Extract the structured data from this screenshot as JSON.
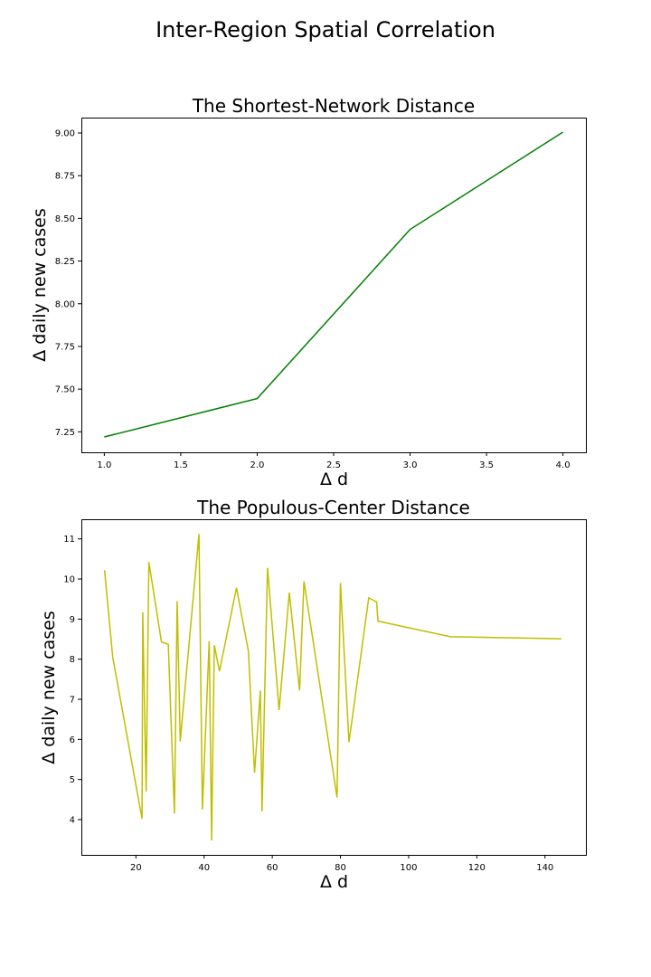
{
  "figure": {
    "suptitle": "Inter-Region Spatial Correlation"
  },
  "chart_data": [
    {
      "type": "line",
      "title": "The Shortest-Network Distance",
      "xlabel": "Δ d",
      "ylabel": "Δ daily new cases",
      "xlim": [
        0.85,
        4.15
      ],
      "ylim": [
        7.13,
        9.09
      ],
      "xticks": [
        1.0,
        1.5,
        2.0,
        2.5,
        3.0,
        3.5,
        4.0
      ],
      "xtick_labels": [
        "1.0",
        "1.5",
        "2.0",
        "2.5",
        "3.0",
        "3.5",
        "4.0"
      ],
      "yticks": [
        7.25,
        7.5,
        7.75,
        8.0,
        8.25,
        8.5,
        8.75,
        9.0
      ],
      "ytick_labels": [
        "7.25",
        "7.50",
        "7.75",
        "8.00",
        "8.25",
        "8.50",
        "8.75",
        "9.00"
      ],
      "grid": false,
      "series": [
        {
          "color": "#008000",
          "x": [
            1,
            2,
            3,
            4
          ],
          "y": [
            7.22,
            7.445,
            8.435,
            9.005
          ]
        }
      ]
    },
    {
      "type": "line",
      "title": "The Populous-Center Distance",
      "xlabel": "Δ d",
      "ylabel": "Δ daily new cases",
      "xlim": [
        4.0,
        152.0
      ],
      "ylim": [
        3.12,
        11.49
      ],
      "xticks": [
        20,
        40,
        60,
        80,
        100,
        120,
        140
      ],
      "xtick_labels": [
        "20",
        "40",
        "60",
        "80",
        "100",
        "120",
        "140"
      ],
      "yticks": [
        4,
        5,
        6,
        7,
        8,
        9,
        10,
        11
      ],
      "ytick_labels": [
        "4",
        "5",
        "6",
        "7",
        "8",
        "9",
        "10",
        "11"
      ],
      "grid": false,
      "series": [
        {
          "color": "#bfbf00",
          "x": [
            10.8,
            13.2,
            21.8,
            22.0,
            23.0,
            23.8,
            27.5,
            29.5,
            31.3,
            32.1,
            33.0,
            38.5,
            39.5,
            41.5,
            42.2,
            43.0,
            44.5,
            49.5,
            53.0,
            54.8,
            56.5,
            57.0,
            58.6,
            62.0,
            65.0,
            68.0,
            69.3,
            79.0,
            80.0,
            82.5,
            88.3,
            90.6,
            91.0,
            112.3,
            144.8
          ],
          "y": [
            10.22,
            8.05,
            4.02,
            9.17,
            4.7,
            10.42,
            8.43,
            8.37,
            4.15,
            9.45,
            5.95,
            11.12,
            4.25,
            8.45,
            3.48,
            8.35,
            7.7,
            9.78,
            8.2,
            5.17,
            7.22,
            4.2,
            10.28,
            6.73,
            9.66,
            7.22,
            9.94,
            4.55,
            9.9,
            5.93,
            9.53,
            9.43,
            8.95,
            8.56,
            8.51
          ]
        }
      ]
    }
  ]
}
